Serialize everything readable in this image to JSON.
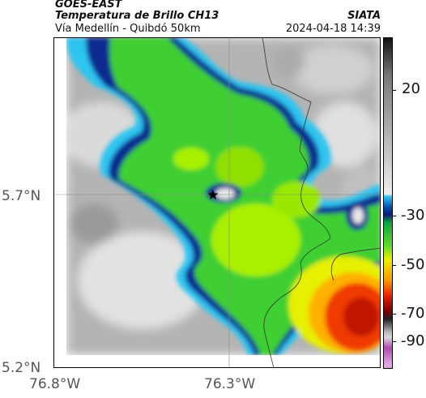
{
  "header": {
    "line1": "GOES-EAST",
    "line2": "Temperatura de Brillo CH13",
    "line3": "Vía Medellín - Quibdó 50km",
    "source": "SIATA",
    "datetime": "2024-04-18 14:39"
  },
  "map": {
    "lat_labels": [
      "5.7°N",
      "5.2°N"
    ],
    "lon_labels": [
      "76.8°W",
      "76.3°W"
    ],
    "marker": "star-icon"
  },
  "colorbar": {
    "ticks": [
      "20",
      "-30",
      "-50",
      "-70",
      "-90"
    ],
    "stops": [
      {
        "value": 35,
        "color": "#111111"
      },
      {
        "value": 20,
        "color": "#7a7a7a"
      },
      {
        "value": -25,
        "color": "#ededed"
      },
      {
        "value": -26,
        "color": "#2fc4f0"
      },
      {
        "value": -30,
        "color": "#0a4fae"
      },
      {
        "value": -33,
        "color": "#0b1d7a"
      },
      {
        "value": -36,
        "color": "#0aa640"
      },
      {
        "value": -45,
        "color": "#5fdc2a"
      },
      {
        "value": -50,
        "color": "#e6f000"
      },
      {
        "value": -58,
        "color": "#ff9a00"
      },
      {
        "value": -64,
        "color": "#e81e00"
      },
      {
        "value": -70,
        "color": "#7a0000"
      },
      {
        "value": -73,
        "color": "#222222"
      },
      {
        "value": -78,
        "color": "#bbbbbb"
      },
      {
        "value": -80,
        "color": "#d8d8d8"
      },
      {
        "value": -84,
        "color": "#b04ab0"
      },
      {
        "value": -90,
        "color": "#e0a6e0"
      }
    ],
    "range": [
      35,
      -92
    ]
  }
}
